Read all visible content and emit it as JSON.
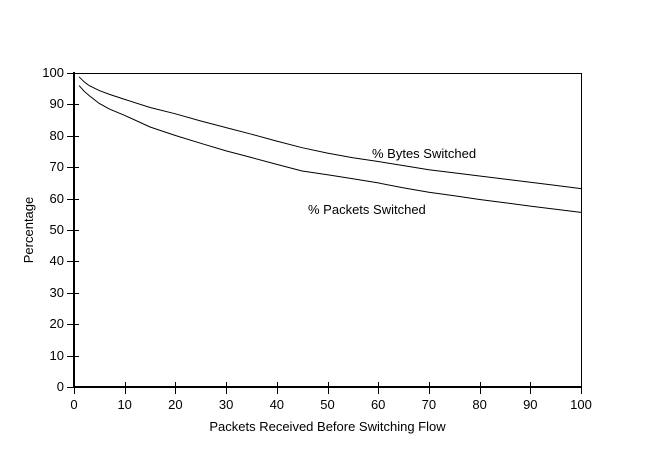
{
  "figure": {
    "background_color": "#ffffff",
    "line_color": "#000000",
    "text_color": "#000000"
  },
  "chart_data": {
    "type": "line",
    "title": "",
    "xlabel": "Packets Received Before Switching Flow",
    "ylabel": "Percentage",
    "xlim": [
      0,
      100
    ],
    "ylim": [
      0,
      100
    ],
    "x_ticks": [
      0,
      10,
      20,
      30,
      40,
      50,
      60,
      70,
      80,
      90,
      100
    ],
    "y_ticks": [
      0,
      10,
      20,
      30,
      40,
      50,
      60,
      70,
      80,
      90,
      100
    ],
    "grid": false,
    "legend_position": "inline-annotations",
    "x": [
      1,
      2,
      3,
      5,
      7,
      10,
      15,
      20,
      25,
      30,
      35,
      40,
      45,
      50,
      55,
      60,
      65,
      70,
      75,
      80,
      85,
      90,
      95,
      100
    ],
    "series": [
      {
        "name": "% Bytes Switched",
        "values": [
          98.8,
          97.2,
          96.0,
          94.4,
          93.2,
          91.6,
          89.0,
          87.0,
          84.7,
          82.6,
          80.5,
          78.3,
          76.2,
          74.5,
          73.0,
          71.8,
          70.5,
          69.2,
          68.2,
          67.2,
          66.2,
          65.2,
          64.2,
          63.2
        ]
      },
      {
        "name": "% Packets Switched",
        "values": [
          96.0,
          94.2,
          92.8,
          90.3,
          88.5,
          86.5,
          82.8,
          80.1,
          77.6,
          75.2,
          73.1,
          70.9,
          68.8,
          67.6,
          66.3,
          65.0,
          63.4,
          62.0,
          60.9,
          59.7,
          58.7,
          57.6,
          56.6,
          55.6
        ]
      }
    ]
  }
}
